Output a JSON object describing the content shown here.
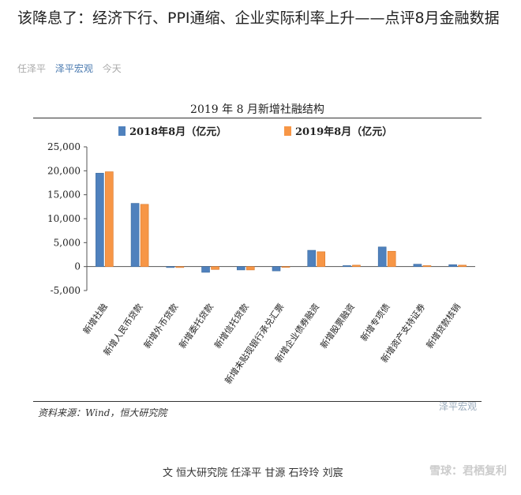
{
  "article": {
    "title": "该降息了：经济下行、PPI通缩、企业实际利率上升——点评8月金融数据",
    "author": "任泽平",
    "account": "泽平宏观",
    "time": "今天"
  },
  "figure": {
    "title": "2019 年 8 月新增社融结构",
    "source": "资料来源：Wind，恒大研究院",
    "watermark": "泽平宏观"
  },
  "footer": {
    "credit": "文 恒大研究院 任泽平 甘源 石玲玲 刘宸",
    "watermark": "雪球：君栖复利"
  },
  "colors": {
    "series1": "#4f81bd",
    "series2": "#f79646"
  },
  "chart_data": {
    "type": "bar",
    "title": "2019 年 8 月新增社融结构",
    "categories": [
      "新增社融",
      "新增人民币贷款",
      "新增外币贷款",
      "新增委托贷款",
      "新增信托贷款",
      "新增未贴现银行承兑汇票",
      "新增企业债券融资",
      "新增股票融资",
      "新增专项债",
      "新增资产支持证券",
      "新增贷款核销"
    ],
    "series": [
      {
        "name": "2018年8月（亿元）",
        "values": [
          19500,
          13200,
          -200,
          -1200,
          -700,
          -900,
          3400,
          200,
          4100,
          500,
          400
        ]
      },
      {
        "name": "2019年8月（亿元）",
        "values": [
          19800,
          13000,
          -200,
          -600,
          -700,
          -100,
          3100,
          300,
          3200,
          200,
          300
        ]
      }
    ],
    "ylim": [
      -5000,
      25000
    ],
    "yticks": [
      "25,000",
      "20,000",
      "15,000",
      "10,000",
      "5,000",
      "0",
      "-5,000"
    ],
    "legend": "top",
    "grid": false
  }
}
